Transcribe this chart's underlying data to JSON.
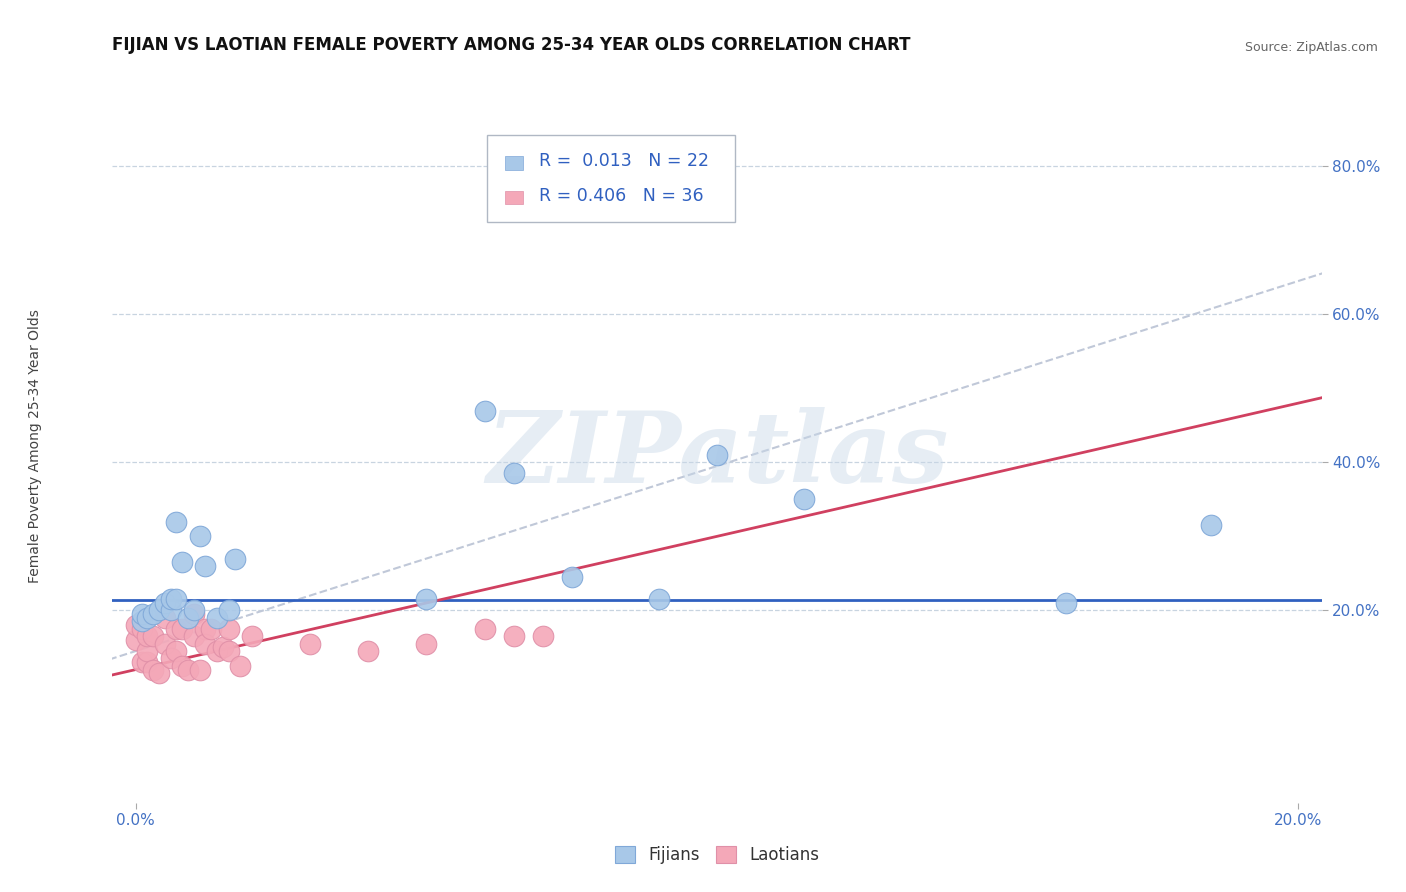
{
  "title": "FIJIAN VS LAOTIAN FEMALE POVERTY AMONG 25-34 YEAR OLDS CORRELATION CHART",
  "source": "Source: ZipAtlas.com",
  "ylabel": "Female Poverty Among 25-34 Year Olds",
  "xlim": [
    -0.004,
    0.204
  ],
  "ylim": [
    -0.06,
    0.88
  ],
  "xtick_positions": [
    0.0,
    0.2
  ],
  "xtick_labels": [
    "0.0%",
    "20.0%"
  ],
  "ytick_positions": [
    0.2,
    0.4,
    0.6,
    0.8
  ],
  "ytick_labels": [
    "20.0%",
    "40.0%",
    "60.0%",
    "80.0%"
  ],
  "fijian_color": "#a8c8e8",
  "laotian_color": "#f4a8b8",
  "fijian_line_color": "#3060c0",
  "laotian_line_color": "#d04060",
  "dashed_line_color": "#c0c8d8",
  "background_color": "#ffffff",
  "grid_color": "#c8d4e0",
  "title_fontsize": 12,
  "source_fontsize": 9,
  "axis_label_fontsize": 10,
  "tick_fontsize": 11,
  "watermark_text": "ZIPatlas",
  "fijian_x": [
    0.001,
    0.001,
    0.002,
    0.003,
    0.004,
    0.005,
    0.006,
    0.006,
    0.007,
    0.007,
    0.008,
    0.009,
    0.01,
    0.011,
    0.012,
    0.014,
    0.016,
    0.017,
    0.05,
    0.06,
    0.065,
    0.075,
    0.09,
    0.1,
    0.115,
    0.16,
    0.185
  ],
  "fijian_y": [
    0.185,
    0.195,
    0.19,
    0.195,
    0.2,
    0.21,
    0.2,
    0.215,
    0.215,
    0.32,
    0.265,
    0.19,
    0.2,
    0.3,
    0.26,
    0.19,
    0.2,
    0.27,
    0.215,
    0.47,
    0.385,
    0.245,
    0.215,
    0.41,
    0.35,
    0.21,
    0.315
  ],
  "laotian_x": [
    0.0,
    0.0,
    0.001,
    0.001,
    0.002,
    0.002,
    0.002,
    0.003,
    0.003,
    0.004,
    0.005,
    0.005,
    0.006,
    0.007,
    0.007,
    0.008,
    0.008,
    0.009,
    0.01,
    0.01,
    0.011,
    0.012,
    0.012,
    0.013,
    0.014,
    0.015,
    0.016,
    0.016,
    0.018,
    0.02,
    0.03,
    0.04,
    0.05,
    0.06,
    0.065,
    0.07
  ],
  "laotian_y": [
    0.16,
    0.18,
    0.13,
    0.175,
    0.13,
    0.145,
    0.165,
    0.12,
    0.165,
    0.115,
    0.155,
    0.19,
    0.135,
    0.175,
    0.145,
    0.125,
    0.175,
    0.12,
    0.195,
    0.165,
    0.12,
    0.175,
    0.155,
    0.175,
    0.145,
    0.15,
    0.145,
    0.175,
    0.125,
    0.165,
    0.155,
    0.145,
    0.155,
    0.175,
    0.165,
    0.165
  ],
  "fijian_line_y_mean": 0.214,
  "laotian_slope": 1.8,
  "laotian_intercept": 0.12,
  "dashed_slope": 2.5,
  "dashed_intercept": 0.145
}
